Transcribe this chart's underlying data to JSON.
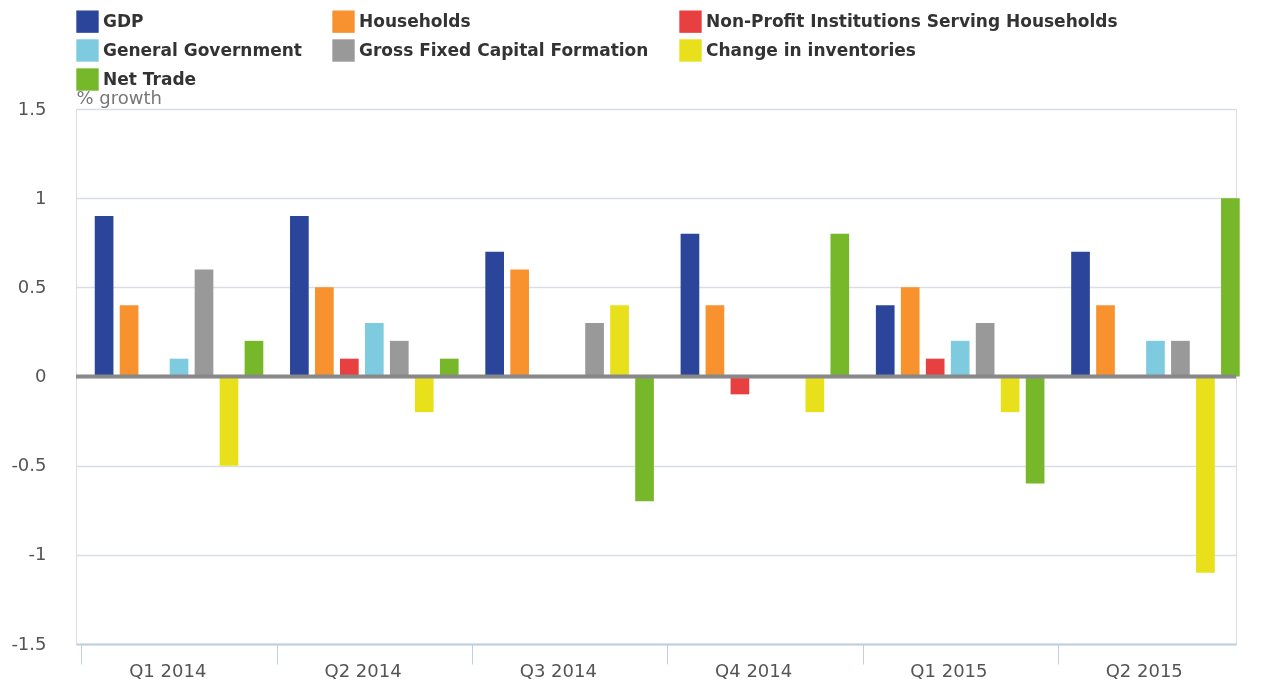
{
  "chart_data": {
    "type": "bar",
    "ylabel": "% growth",
    "categories": [
      "Q1 2014",
      "Q2 2014",
      "Q3 2014",
      "Q4 2014",
      "Q1 2015",
      "Q2 2015"
    ],
    "series": [
      {
        "name": "GDP",
        "color": "#2a4599",
        "values": [
          0.9,
          0.9,
          0.7,
          0.8,
          0.4,
          0.7
        ]
      },
      {
        "name": "Households",
        "color": "#f7922f",
        "values": [
          0.4,
          0.5,
          0.6,
          0.4,
          0.5,
          0.4
        ]
      },
      {
        "name": "Non-Profit Institutions Serving Households",
        "color": "#e84041",
        "values": [
          0,
          0.1,
          0,
          -0.1,
          0.1,
          0
        ]
      },
      {
        "name": "General Government",
        "color": "#7ecbe0",
        "values": [
          0.1,
          0.3,
          0,
          0,
          0.2,
          0.2
        ]
      },
      {
        "name": "Gross Fixed Capital Formation",
        "color": "#999999",
        "values": [
          0.6,
          0.2,
          0.3,
          0,
          0.3,
          0.2
        ]
      },
      {
        "name": "Change in inventories",
        "color": "#e8e01a",
        "values": [
          -0.5,
          -0.2,
          0.4,
          -0.2,
          -0.2,
          -1.1
        ]
      },
      {
        "name": "Net Trade",
        "color": "#76b82a",
        "values": [
          0.2,
          0.1,
          -0.7,
          0.8,
          -0.6,
          1.0
        ]
      }
    ],
    "ylim": [
      -1.5,
      1.5
    ],
    "yticks": [
      -1.5,
      -1,
      -0.5,
      0,
      0.5,
      1,
      1.5
    ],
    "ref_lines": [
      {
        "axis": "y",
        "value": 0,
        "color": "#888888"
      }
    ],
    "grid": "y",
    "legend": "top"
  }
}
